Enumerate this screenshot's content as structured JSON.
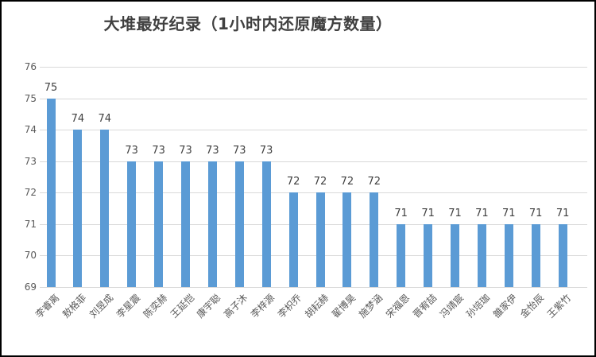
{
  "chart_data": {
    "type": "bar",
    "title": "大堆最好纪录（1小时内还原魔方数量）",
    "categories": [
      "李睿离",
      "敖格菲",
      "刘昱成",
      "李星震",
      "陈奕赫",
      "王延恺",
      "康宇聪",
      "高子沐",
      "李梓源",
      "李枳乔",
      "胡耘赫",
      "翟博昊",
      "施梦涵",
      "宋福恩",
      "晋宥喆",
      "冯靖宸",
      "孙培珈",
      "雒家伊",
      "金怡辰",
      "王紫竹"
    ],
    "values": [
      75,
      74,
      74,
      73,
      73,
      73,
      73,
      73,
      73,
      72,
      72,
      72,
      72,
      71,
      71,
      71,
      71,
      71,
      71,
      71
    ],
    "xlabel": "",
    "ylabel": "",
    "ylim": [
      69,
      76
    ],
    "yticks": [
      76,
      75,
      74,
      73,
      72,
      71,
      70,
      69
    ],
    "grid": true,
    "legend": false,
    "data_labels_shown": true
  },
  "colors": {
    "bar": "#5B9BD5",
    "gridline": "#D9D9D9",
    "tick_label": "#595959",
    "value_label": "#404040",
    "title": "#404040",
    "background": "#FFFFFF",
    "border": "#000000"
  }
}
